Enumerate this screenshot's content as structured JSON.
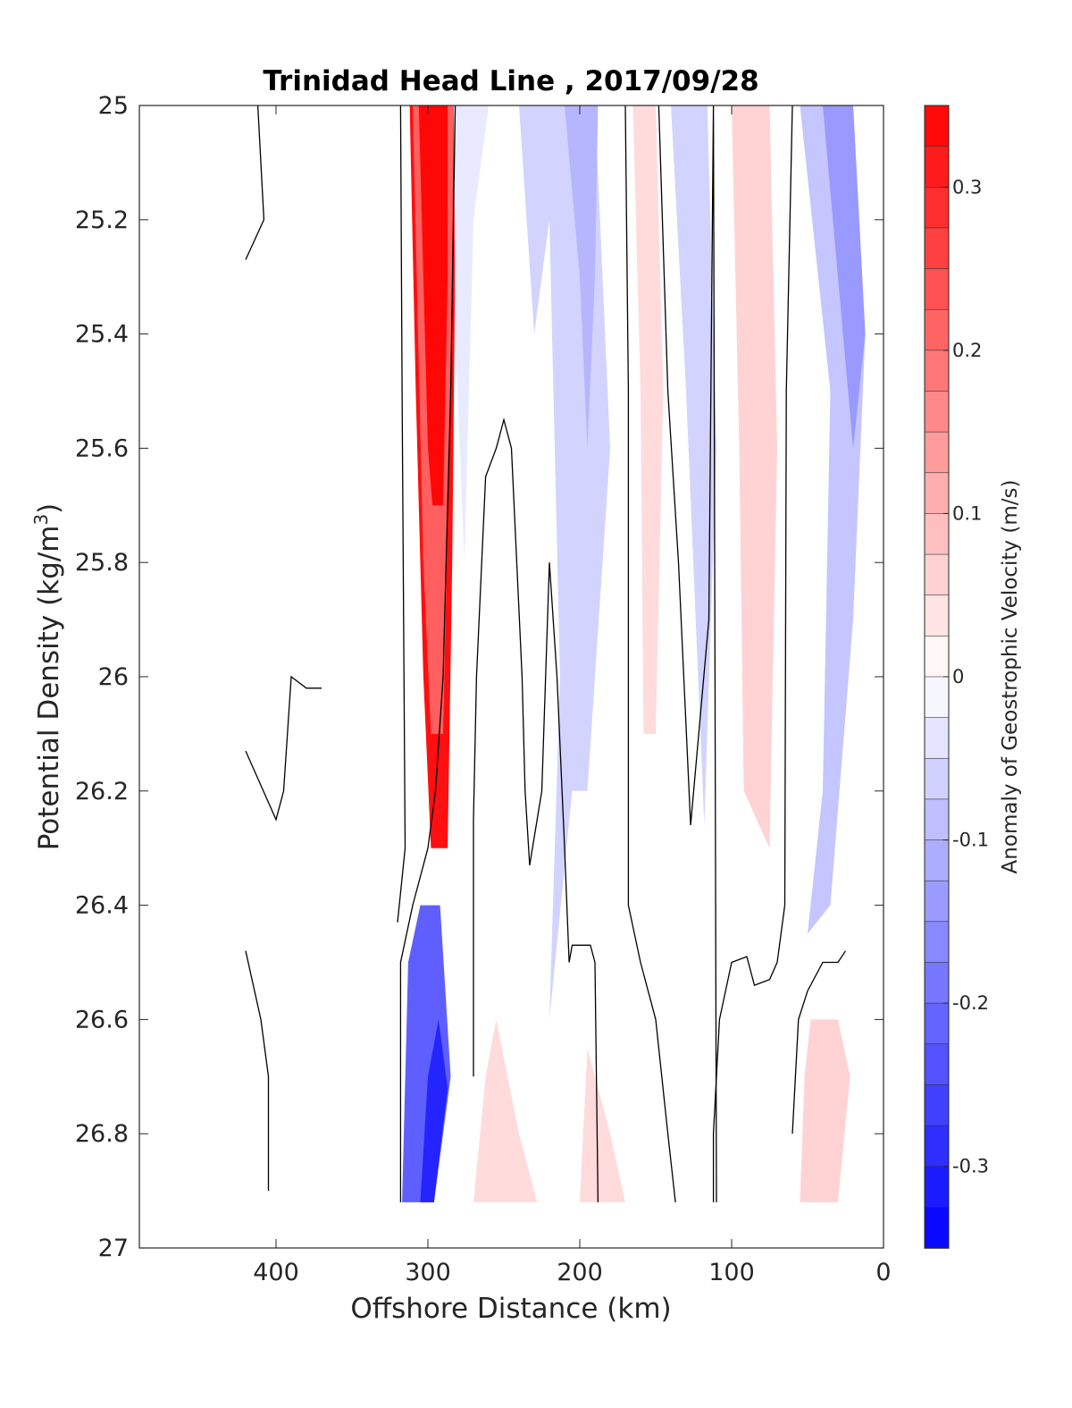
{
  "chart_data": {
    "type": "heatmap",
    "subtype": "filled-contour",
    "title": "Trinidad Head Line , 2017/09/28",
    "xlabel": "Offshore Distance (km)",
    "ylabel_main": "Potential Density (kg/m",
    "ylabel_sup": "3",
    "ylabel_close": ")",
    "colorbar_label": "Anomaly of Geostrophic Velocity (m/s)",
    "xlim": [
      490,
      0
    ],
    "x_reversed": true,
    "ylim": [
      25,
      27
    ],
    "y_reversed": true,
    "xticks": [
      400,
      300,
      200,
      100,
      0
    ],
    "xtick_labels": [
      "400",
      "300",
      "200",
      "100",
      "0"
    ],
    "yticks": [
      25,
      25.2,
      25.4,
      25.6,
      25.8,
      26,
      26.2,
      26.4,
      26.6,
      26.8,
      27
    ],
    "ytick_labels": [
      "25",
      "25.2",
      "25.4",
      "25.6",
      "25.8",
      "26",
      "26.2",
      "26.4",
      "26.6",
      "26.8",
      "27"
    ],
    "clim": [
      -0.35,
      0.35
    ],
    "cb_ticks": [
      0.3,
      0.2,
      0.1,
      0,
      -0.1,
      -0.2,
      -0.3
    ],
    "cb_tick_labels": [
      "0.3",
      "0.2",
      "0.1",
      "0",
      "-0.1",
      "-0.2",
      "-0.3"
    ],
    "colormap": "blue-white-red",
    "colors": {
      "negative": "#0000ff",
      "zero": "#ffffff",
      "positive": "#ff0000",
      "contour": "#000000"
    },
    "n_levels": 28,
    "fields": [
      {
        "name": "core-positive-jet",
        "value": 0.33,
        "polygon": [
          [
            312,
            25
          ],
          [
            308,
            25.5
          ],
          [
            303,
            26.0
          ],
          [
            298,
            26.3
          ],
          [
            287,
            26.3
          ],
          [
            284,
            25.8
          ],
          [
            281,
            25
          ],
          [
            312,
            25
          ]
        ]
      },
      {
        "name": "jet-middle",
        "value": 0.22,
        "polygon": [
          [
            310,
            25
          ],
          [
            303,
            25.8
          ],
          [
            298,
            26.1
          ],
          [
            290,
            26.1
          ],
          [
            285,
            25.5
          ],
          [
            283,
            25
          ],
          [
            310,
            25
          ]
        ]
      },
      {
        "name": "jet-core",
        "value": 0.34,
        "polygon": [
          [
            306,
            25
          ],
          [
            300,
            25.6
          ],
          [
            297,
            25.7
          ],
          [
            290,
            25.7
          ],
          [
            287,
            25.3
          ],
          [
            287,
            25
          ],
          [
            306,
            25
          ]
        ]
      },
      {
        "name": "lower-negative-jet",
        "value": -0.22,
        "polygon": [
          [
            317,
            26.92
          ],
          [
            313,
            26.5
          ],
          [
            305,
            26.4
          ],
          [
            292,
            26.4
          ],
          [
            285,
            26.7
          ],
          [
            296,
            26.92
          ],
          [
            317,
            26.92
          ]
        ]
      },
      {
        "name": "lower-negative-jet-core",
        "value": -0.3,
        "polygon": [
          [
            305,
            26.92
          ],
          [
            300,
            26.7
          ],
          [
            293,
            26.6
          ],
          [
            287,
            26.72
          ],
          [
            296,
            26.92
          ],
          [
            305,
            26.92
          ]
        ]
      },
      {
        "name": "upper-negative-band-a",
        "value": -0.03,
        "polygon": [
          [
            283,
            25
          ],
          [
            282,
            25.4
          ],
          [
            276,
            25.8
          ],
          [
            270,
            25.2
          ],
          [
            260,
            25
          ],
          [
            283,
            25
          ]
        ]
      },
      {
        "name": "upper-negative-band-b",
        "value": -0.06,
        "polygon": [
          [
            240,
            25
          ],
          [
            230,
            25.4
          ],
          [
            220,
            25.2
          ],
          [
            213,
            26.0
          ],
          [
            220,
            26.6
          ],
          [
            205,
            26.2
          ],
          [
            195,
            26.2
          ],
          [
            180,
            25.6
          ],
          [
            190,
            25
          ],
          [
            240,
            25
          ]
        ]
      },
      {
        "name": "upper-negative-band-b-core",
        "value": -0.1,
        "polygon": [
          [
            210,
            25
          ],
          [
            200,
            25.3
          ],
          [
            195,
            25.6
          ],
          [
            190,
            25.3
          ],
          [
            188,
            25
          ],
          [
            210,
            25
          ]
        ]
      },
      {
        "name": "mid-negative-band",
        "value": -0.06,
        "polygon": [
          [
            140,
            25
          ],
          [
            130,
            25.5
          ],
          [
            118,
            26.26
          ],
          [
            110,
            25.6
          ],
          [
            116,
            25
          ],
          [
            140,
            25
          ]
        ]
      },
      {
        "name": "nearshore-negative",
        "value": -0.08,
        "polygon": [
          [
            55,
            25
          ],
          [
            35,
            25.5
          ],
          [
            40,
            26.2
          ],
          [
            50,
            26.45
          ],
          [
            35,
            26.4
          ],
          [
            20,
            25.9
          ],
          [
            12,
            25.4
          ],
          [
            20,
            25
          ],
          [
            55,
            25
          ]
        ]
      },
      {
        "name": "nearshore-negative-core",
        "value": -0.14,
        "polygon": [
          [
            40,
            25
          ],
          [
            30,
            25.3
          ],
          [
            20,
            25.6
          ],
          [
            12,
            25.4
          ],
          [
            20,
            25
          ],
          [
            40,
            25
          ]
        ]
      },
      {
        "name": "upper-positive-band-a",
        "value": 0.05,
        "polygon": [
          [
            165,
            25
          ],
          [
            160,
            25.5
          ],
          [
            158,
            26.1
          ],
          [
            150,
            26.1
          ],
          [
            145,
            25.5
          ],
          [
            150,
            25
          ],
          [
            165,
            25
          ]
        ]
      },
      {
        "name": "upper-positive-band-b",
        "value": 0.06,
        "polygon": [
          [
            100,
            25
          ],
          [
            95,
            25.6
          ],
          [
            92,
            26.2
          ],
          [
            75,
            26.3
          ],
          [
            70,
            25.6
          ],
          [
            75,
            25
          ],
          [
            100,
            25
          ]
        ]
      },
      {
        "name": "lower-positive-patches",
        "value": 0.05,
        "polygon": [
          [
            270,
            26.92
          ],
          [
            262,
            26.7
          ],
          [
            255,
            26.6
          ],
          [
            240,
            26.8
          ],
          [
            228,
            26.92
          ],
          [
            200,
            26.92
          ],
          [
            195,
            26.65
          ],
          [
            180,
            26.8
          ],
          [
            170,
            26.92
          ],
          [
            270,
            26.92
          ]
        ]
      },
      {
        "name": "lower-nearshore-positive",
        "value": 0.06,
        "polygon": [
          [
            55,
            26.92
          ],
          [
            52,
            26.7
          ],
          [
            48,
            26.6
          ],
          [
            30,
            26.6
          ],
          [
            22,
            26.7
          ],
          [
            30,
            26.92
          ],
          [
            55,
            26.92
          ]
        ]
      }
    ],
    "contour_lines": [
      [
        [
          412,
          25
        ],
        [
          408,
          25.2
        ],
        [
          420,
          25.27
        ]
      ],
      [
        [
          420,
          26.13
        ],
        [
          400,
          26.25
        ],
        [
          395,
          26.2
        ],
        [
          390,
          26.0
        ],
        [
          380,
          26.02
        ],
        [
          370,
          26.02
        ]
      ],
      [
        [
          420,
          26.48
        ],
        [
          410,
          26.6
        ],
        [
          405,
          26.7
        ],
        [
          405,
          26.9
        ]
      ],
      [
        [
          318,
          25
        ],
        [
          317,
          25.5
        ],
        [
          315,
          26.3
        ],
        [
          320,
          26.43
        ]
      ],
      [
        [
          318,
          26.92
        ],
        [
          318,
          26.5
        ],
        [
          310,
          26.4
        ],
        [
          300,
          26.3
        ],
        [
          295,
          26.2
        ],
        [
          290,
          26.0
        ],
        [
          285,
          25.5
        ],
        [
          282,
          25
        ]
      ],
      [
        [
          270,
          26.7
        ],
        [
          270,
          26.25
        ],
        [
          268,
          26.0
        ],
        [
          262,
          25.65
        ],
        [
          255,
          25.6
        ],
        [
          250,
          25.55
        ],
        [
          245,
          25.6
        ],
        [
          238,
          26.0
        ],
        [
          236,
          26.2
        ],
        [
          233,
          26.33
        ],
        [
          225,
          26.2
        ],
        [
          220,
          25.8
        ],
        [
          215,
          26.0
        ],
        [
          210,
          26.3
        ],
        [
          207,
          26.5
        ],
        [
          205,
          26.47
        ],
        [
          193,
          26.47
        ],
        [
          190,
          26.5
        ],
        [
          188,
          26.92
        ]
      ],
      [
        [
          170,
          25
        ],
        [
          168,
          25.5
        ],
        [
          168,
          26.4
        ],
        [
          160,
          26.5
        ],
        [
          150,
          26.6
        ],
        [
          142,
          26.8
        ],
        [
          137,
          26.92
        ]
      ],
      [
        [
          148,
          25
        ],
        [
          142,
          25.5
        ],
        [
          135,
          25.8
        ],
        [
          127,
          26.26
        ],
        [
          115,
          25.9
        ],
        [
          112,
          25
        ],
        [
          110,
          26.92
        ]
      ],
      [
        [
          112,
          26.92
        ],
        [
          112,
          26.8
        ],
        [
          108,
          26.6
        ],
        [
          100,
          26.5
        ],
        [
          90,
          26.49
        ],
        [
          85,
          26.54
        ],
        [
          75,
          26.53
        ],
        [
          70,
          26.5
        ],
        [
          65,
          26.4
        ],
        [
          64,
          25.5
        ],
        [
          60,
          25
        ]
      ],
      [
        [
          60,
          26.8
        ],
        [
          58,
          26.7
        ],
        [
          56,
          26.6
        ],
        [
          50,
          26.55
        ],
        [
          40,
          26.5
        ],
        [
          30,
          26.5
        ],
        [
          25,
          26.48
        ]
      ]
    ]
  }
}
